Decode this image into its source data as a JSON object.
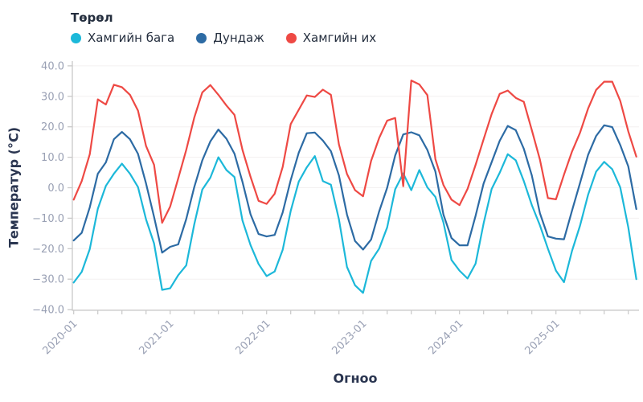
{
  "legend": {
    "title": "Төрөл"
  },
  "axes": {
    "x_title": "Огноо",
    "y_title": "Температур (°C)",
    "y_ticks": [
      40,
      30,
      20,
      10,
      0,
      -10,
      -20,
      -30,
      -40
    ],
    "y_tick_labels": [
      "40.0",
      "30.0",
      "20.0",
      "10.0",
      "0.0",
      "−10.0",
      "−20.0",
      "−30.0",
      "−40.0"
    ],
    "x_tick_labels": [
      "2020-01",
      "2021-01",
      "2022-01",
      "2023-01",
      "2024-01",
      "2025-01"
    ]
  },
  "colors": {
    "grid": "#f3f0f0",
    "axis": "#c9c9c9",
    "tick_label": "#99a0b4",
    "title_text": "#2a3550",
    "legend_text": "#242e3e",
    "background": "#ffffff"
  },
  "chart_data": {
    "type": "line",
    "title": "",
    "xlabel": "Огноо",
    "ylabel": "Температур (°C)",
    "ylim": [
      -40,
      40
    ],
    "grid": "horizontal-faint",
    "legend_position": "top-left",
    "legend_title": "Төрөл",
    "x": [
      "2020-01",
      "2020-02",
      "2020-03",
      "2020-04",
      "2020-05",
      "2020-06",
      "2020-07",
      "2020-08",
      "2020-09",
      "2020-10",
      "2020-11",
      "2020-12",
      "2021-01",
      "2021-02",
      "2021-03",
      "2021-04",
      "2021-05",
      "2021-06",
      "2021-07",
      "2021-08",
      "2021-09",
      "2021-10",
      "2021-11",
      "2021-12",
      "2022-01",
      "2022-02",
      "2022-03",
      "2022-04",
      "2022-05",
      "2022-06",
      "2022-07",
      "2022-08",
      "2022-09",
      "2022-10",
      "2022-11",
      "2022-12",
      "2023-01",
      "2023-02",
      "2023-03",
      "2023-04",
      "2023-05",
      "2023-06",
      "2023-07",
      "2023-08",
      "2023-09",
      "2023-10",
      "2023-11",
      "2023-12",
      "2024-01",
      "2024-02",
      "2024-03",
      "2024-04",
      "2024-05",
      "2024-06",
      "2024-07",
      "2024-08",
      "2024-09",
      "2024-10",
      "2024-11",
      "2024-12",
      "2025-01",
      "2025-02",
      "2025-03",
      "2025-04",
      "2025-05",
      "2025-06",
      "2025-07",
      "2025-08",
      "2025-09",
      "2025-10",
      "2025-11"
    ],
    "series": [
      {
        "name": "Хамгийн бага",
        "color": "#1cb8d9",
        "values": [
          -31.1,
          -27.6,
          -20.1,
          -6.9,
          0.6,
          4.6,
          7.9,
          4.6,
          0.2,
          -10.4,
          -18.3,
          -33.5,
          -33.0,
          -28.7,
          -25.5,
          -12.0,
          -0.6,
          3.3,
          10.0,
          5.8,
          3.5,
          -10.8,
          -18.8,
          -25.0,
          -29.0,
          -27.5,
          -20.4,
          -7.6,
          2.0,
          6.7,
          10.4,
          2.2,
          1.0,
          -10.4,
          -26.0,
          -32.0,
          -34.5,
          -24.0,
          -20.0,
          -13.0,
          -0.5,
          4.7,
          -0.8,
          5.8,
          0.1,
          -3.0,
          -11.4,
          -23.7,
          -27.2,
          -29.8,
          -24.9,
          -11.7,
          -0.4,
          4.9,
          11.0,
          9.0,
          2.2,
          -5.7,
          -12.3,
          -20.0,
          -27.2,
          -31.0,
          -20.7,
          -12.4,
          -2.3,
          5.3,
          8.5,
          6.1,
          0.1,
          -13.0,
          -30.0
        ]
      },
      {
        "name": "Дундаж",
        "color": "#2d6ba4",
        "values": [
          -17.3,
          -14.8,
          -6.4,
          4.6,
          8.3,
          15.9,
          18.3,
          15.9,
          11.1,
          1.4,
          -9.6,
          -21.3,
          -19.4,
          -18.6,
          -10.3,
          0.2,
          9.0,
          15.2,
          19.1,
          16.1,
          11.2,
          1.9,
          -8.7,
          -15.2,
          -16.0,
          -15.5,
          -8.1,
          2.5,
          11.5,
          17.9,
          18.1,
          15.5,
          12.0,
          4.0,
          -8.8,
          -17.5,
          -20.3,
          -17.0,
          -7.8,
          0.0,
          10.6,
          17.5,
          18.2,
          17.2,
          12.4,
          5.3,
          -8.8,
          -16.5,
          -18.9,
          -18.9,
          -9.2,
          1.4,
          8.4,
          15.4,
          20.3,
          18.9,
          12.8,
          4.0,
          -8.3,
          -16.0,
          -16.7,
          -16.9,
          -7.5,
          1.6,
          10.8,
          17.0,
          20.5,
          19.9,
          14.0,
          7.0,
          -7.0
        ]
      },
      {
        "name": "Хамгийн их",
        "color": "#ee4944",
        "values": [
          -3.9,
          2.2,
          11.0,
          29.0,
          27.3,
          33.8,
          33.0,
          30.5,
          25.3,
          13.7,
          7.5,
          -11.5,
          -6.2,
          3.0,
          12.4,
          23.0,
          31.3,
          33.7,
          30.5,
          27.0,
          23.9,
          12.4,
          3.6,
          -4.3,
          -5.3,
          -2.0,
          6.8,
          20.9,
          25.6,
          30.3,
          29.8,
          32.2,
          30.5,
          14.2,
          4.5,
          -0.8,
          -2.8,
          8.8,
          16.3,
          22.0,
          22.9,
          0.5,
          35.2,
          33.9,
          30.4,
          9.4,
          0.9,
          -3.9,
          -5.7,
          -0.4,
          7.5,
          15.9,
          24.2,
          30.8,
          31.9,
          29.5,
          28.2,
          18.9,
          9.3,
          -3.4,
          -3.8,
          4.3,
          11.9,
          18.1,
          26.0,
          32.1,
          34.8,
          34.8,
          28.5,
          18.5,
          10.2
        ]
      }
    ]
  }
}
